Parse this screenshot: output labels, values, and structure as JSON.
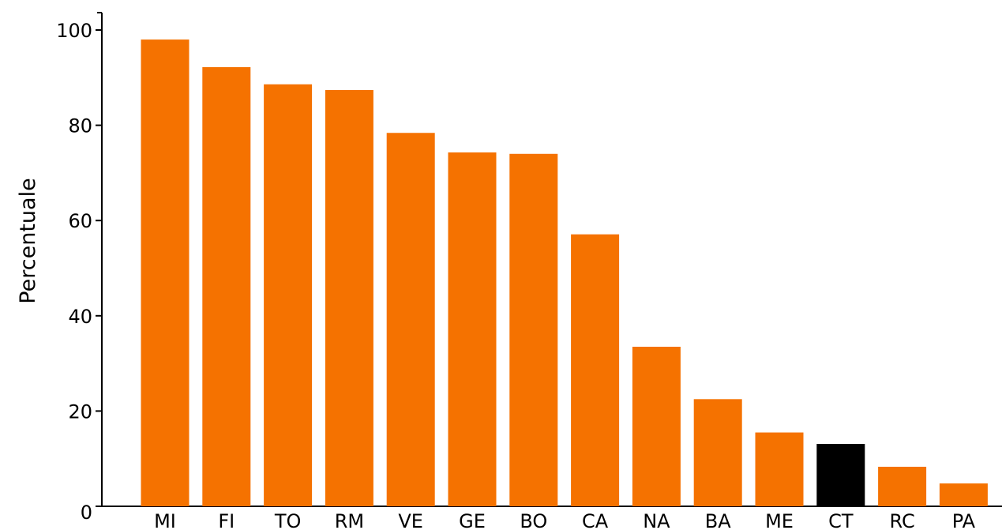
{
  "chart_data": {
    "type": "bar",
    "title": "",
    "xlabel": "",
    "ylabel": "Percentuale",
    "categories": [
      "MI",
      "FI",
      "TO",
      "RM",
      "VE",
      "GE",
      "BO",
      "CA",
      "NA",
      "BA",
      "ME",
      "CT",
      "RC",
      "PA"
    ],
    "values": [
      98,
      92.2,
      88.6,
      87.4,
      78.4,
      74.3,
      74.0,
      57.1,
      33.5,
      22.5,
      15.5,
      13.1,
      8.3,
      4.8
    ],
    "highlight": "CT",
    "ylim": [
      0,
      100
    ],
    "yticks": [
      0,
      20,
      40,
      60,
      80,
      100
    ],
    "grid": false,
    "legend": "none",
    "colors": {
      "bar": "#f57200",
      "highlight": "#000000",
      "axis": "#000000"
    }
  }
}
